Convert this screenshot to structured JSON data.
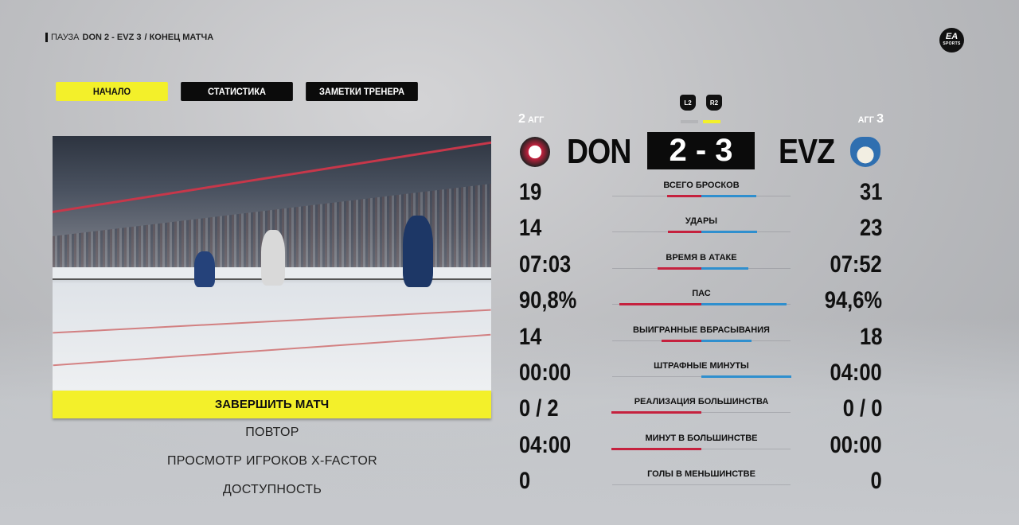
{
  "breadcrumb": {
    "prefix": "ПАУЗА",
    "match": "DON 2 - EVZ 3",
    "suffix": "/ КОНЕЦ МАТЧА"
  },
  "brand_logo": "EA SPORTS",
  "tabs": [
    {
      "label": "НАЧАЛО",
      "active": true
    },
    {
      "label": "СТАТИСТИКА",
      "active": false
    },
    {
      "label": "ЗАМЕТКИ ТРЕНЕРА",
      "active": false
    }
  ],
  "menu": {
    "primary": "ЗАВЕРШИТЬ МАТЧ",
    "items": [
      "ПОВТОР",
      "ПРОСМОТР ИГРОКОВ X-FACTOR",
      "ДОСТУПНОСТЬ"
    ]
  },
  "scoreboard": {
    "l2": "L2",
    "r2": "R2",
    "home": {
      "abbr": "DON",
      "score": "2",
      "agg_label": "АГГ",
      "agg": "2",
      "color": "#c5213e"
    },
    "away": {
      "abbr": "EVZ",
      "score": "3",
      "agg_label": "АГГ",
      "agg": "3",
      "color": "#2f8fce"
    },
    "score_text": "2 - 3"
  },
  "stats": [
    {
      "label": "ВСЕГО БРОСКОВ",
      "home": "19",
      "away": "31",
      "home_fill": 0.38,
      "away_fill": 0.61
    },
    {
      "label": "УДАРЫ",
      "home": "14",
      "away": "23",
      "home_fill": 0.37,
      "away_fill": 0.62
    },
    {
      "label": "ВРЕМЯ В АТАКЕ",
      "home": "07:03",
      "away": "07:52",
      "home_fill": 0.49,
      "away_fill": 0.52
    },
    {
      "label": "ПАС",
      "home": "90,8%",
      "away": "94,6%",
      "home_fill": 0.91,
      "away_fill": 0.95
    },
    {
      "label": "ВЫИГРАННЫЕ ВБРАСЫВАНИЯ",
      "home": "14",
      "away": "18",
      "home_fill": 0.44,
      "away_fill": 0.56
    },
    {
      "label": "ШТРАФНЫЕ МИНУТЫ",
      "home": "00:00",
      "away": "04:00",
      "home_fill": 0,
      "away_fill": 1
    },
    {
      "label": "РЕАЛИЗАЦИЯ БОЛЬШИНСТВА",
      "home": "0 / 2",
      "away": "0 / 0",
      "home_fill": 1,
      "away_fill": 0
    },
    {
      "label": "МИНУТ В БОЛЬШИНСТВЕ",
      "home": "04:00",
      "away": "00:00",
      "home_fill": 1,
      "away_fill": 0
    },
    {
      "label": "ГОЛЫ В МЕНЬШИНСТВЕ",
      "home": "0",
      "away": "0",
      "home_fill": 0,
      "away_fill": 0
    }
  ]
}
